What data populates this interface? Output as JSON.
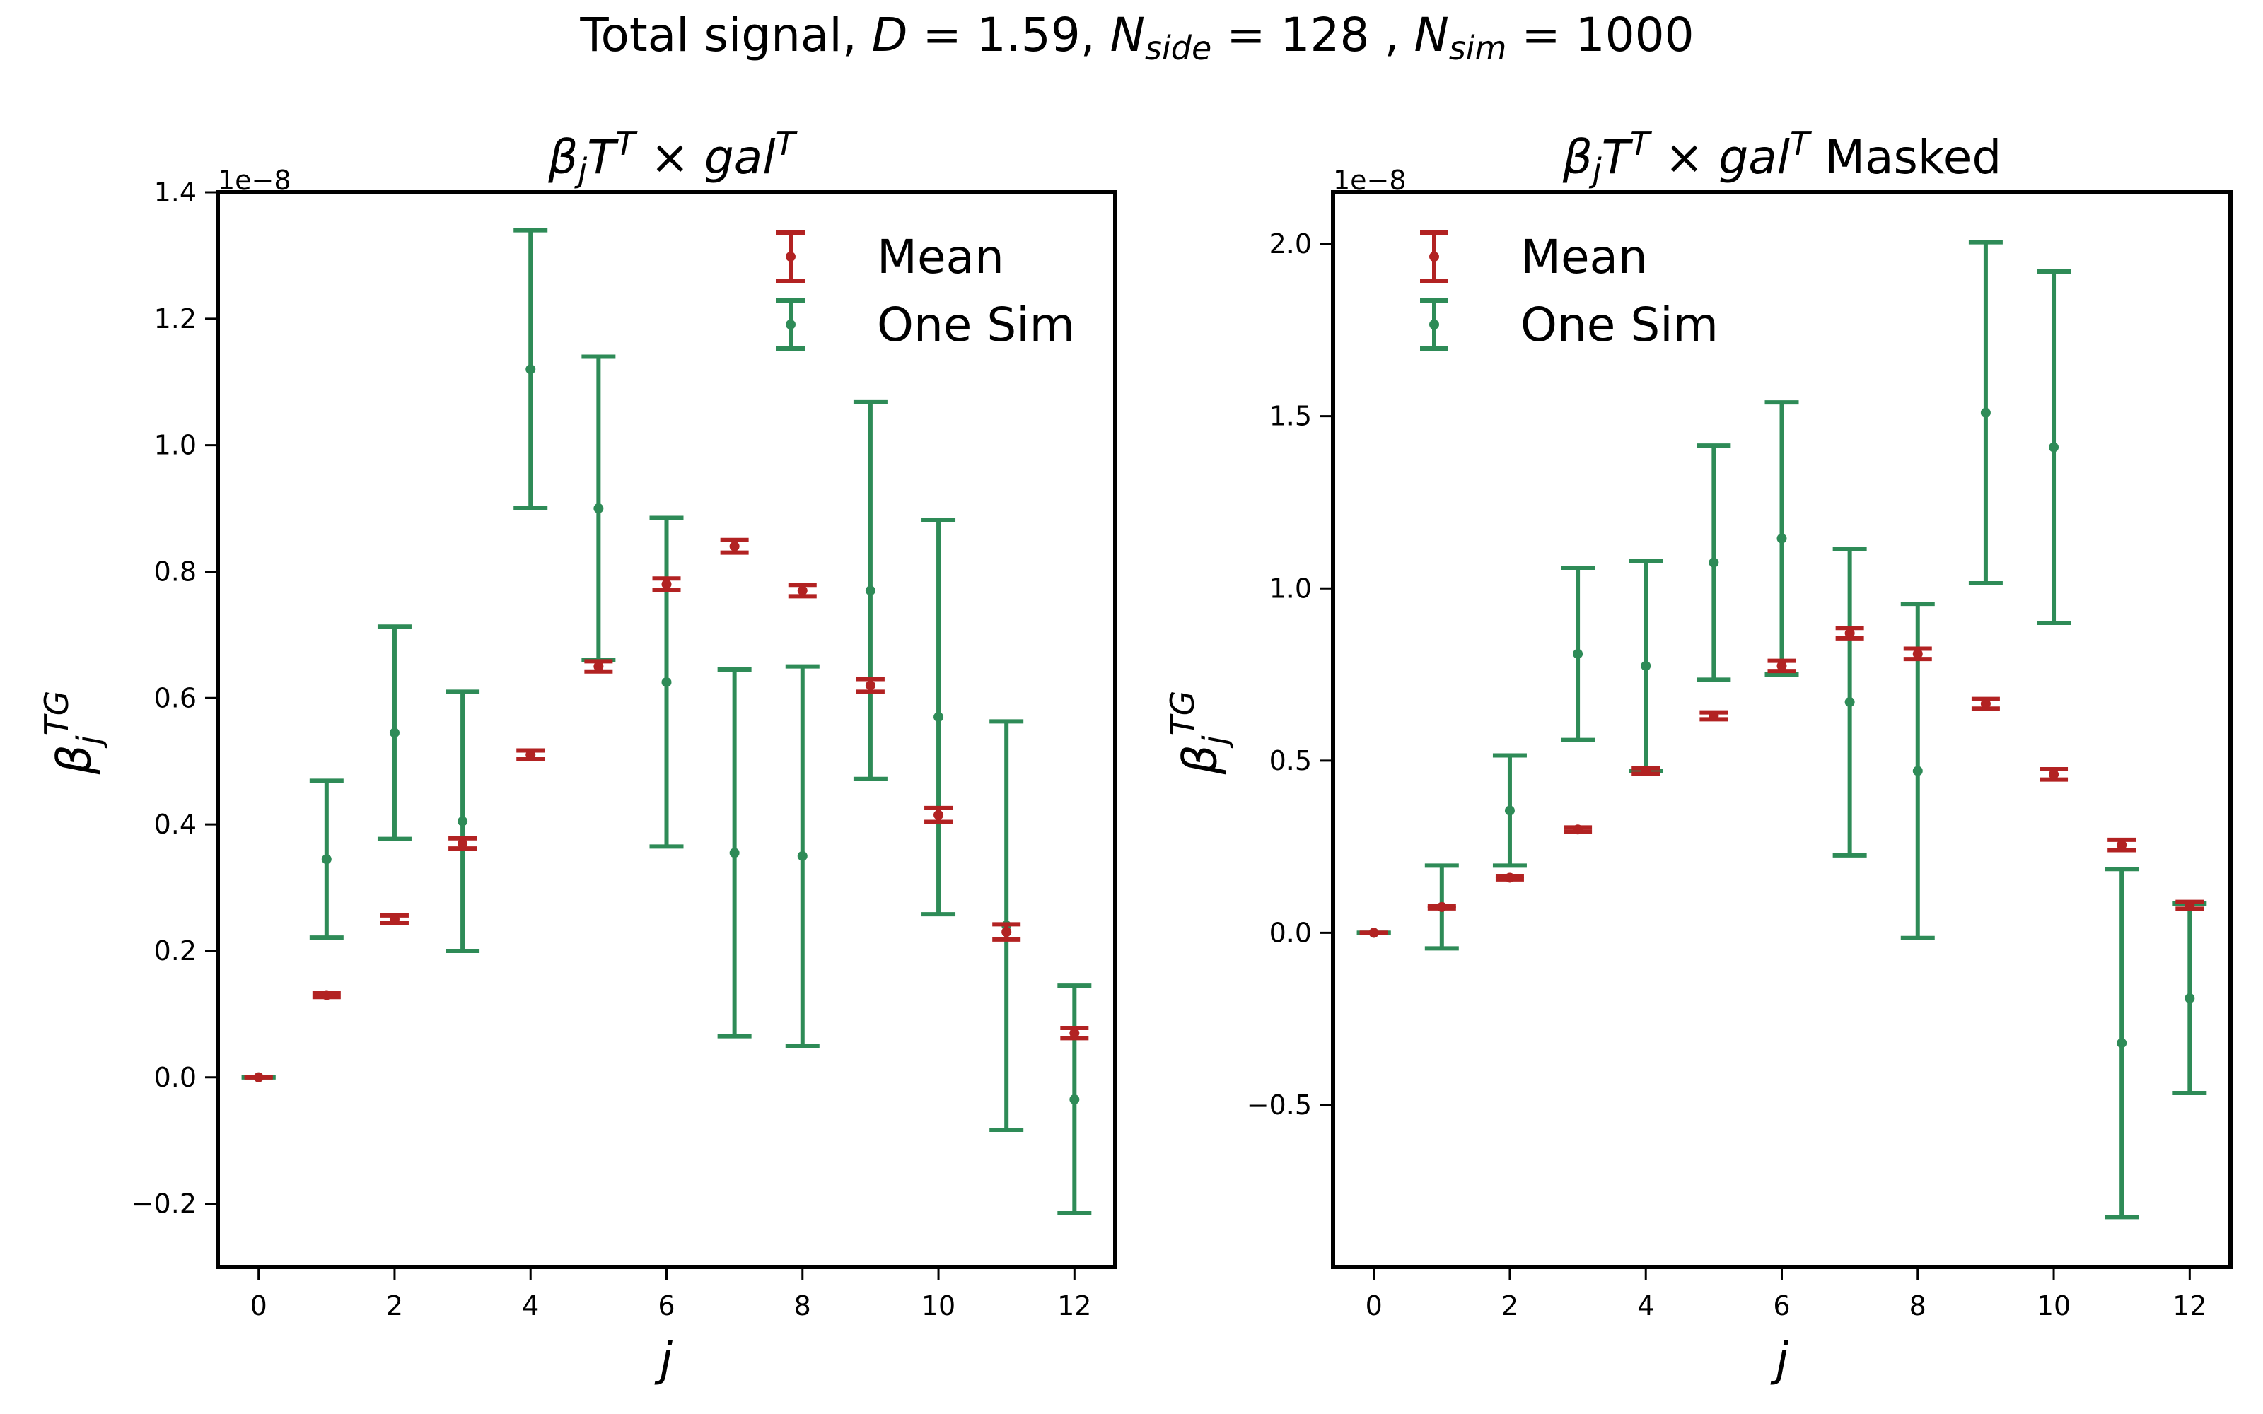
{
  "figure": {
    "suptitle": "Total signal, D = 1.59,  N_side = 128 ,  N_sim = 1000"
  },
  "colors": {
    "mean": "#b22222",
    "one_sim": "#2e8b57",
    "axes": "#000000"
  },
  "chart_data": [
    {
      "type": "scatter",
      "title": "β_j T^T × gal^T",
      "xlabel": "j",
      "ylabel": "β_j^TG",
      "y_offset_label": "1e−8",
      "xlim": [
        -0.6,
        12.6
      ],
      "ylim": [
        -0.3,
        1.4
      ],
      "x_ticks": [
        0,
        2,
        4,
        6,
        8,
        10,
        12
      ],
      "y_ticks": [
        -0.2,
        0.0,
        0.2,
        0.4,
        0.6,
        0.8,
        1.0,
        1.2,
        1.4
      ],
      "y_tick_labels": [
        "−0.2",
        "0.0",
        "0.2",
        "0.4",
        "0.6",
        "0.8",
        "1.0",
        "1.2",
        "1.4"
      ],
      "legend_position": "top-right",
      "series": [
        {
          "name": "Mean",
          "color_key": "mean",
          "x": [
            0,
            1,
            2,
            3,
            4,
            5,
            6,
            7,
            8,
            9,
            10,
            11,
            12
          ],
          "y": [
            0.0,
            0.13,
            0.25,
            0.37,
            0.51,
            0.65,
            0.78,
            0.84,
            0.77,
            0.62,
            0.415,
            0.23,
            0.07
          ],
          "yerr": [
            0.0,
            0.003,
            0.006,
            0.008,
            0.007,
            0.008,
            0.009,
            0.01,
            0.009,
            0.01,
            0.011,
            0.012,
            0.008
          ]
        },
        {
          "name": "One Sim",
          "color_key": "one_sim",
          "x": [
            0,
            1,
            2,
            3,
            4,
            5,
            6,
            7,
            8,
            9,
            10,
            11,
            12
          ],
          "y": [
            0.0,
            0.345,
            0.545,
            0.405,
            1.12,
            0.9,
            0.625,
            0.355,
            0.35,
            0.77,
            0.57,
            0.24,
            -0.035
          ],
          "yerr": [
            0.0,
            0.124,
            0.168,
            0.205,
            0.22,
            0.24,
            0.26,
            0.29,
            0.3,
            0.298,
            0.312,
            0.323,
            0.18
          ]
        }
      ]
    },
    {
      "type": "scatter",
      "title": "β_j T^T × gal^T Masked",
      "xlabel": "j",
      "ylabel": "β_j^TG",
      "y_offset_label": "1e−8",
      "xlim": [
        -0.6,
        12.6
      ],
      "ylim": [
        -0.97,
        2.15
      ],
      "x_ticks": [
        0,
        2,
        4,
        6,
        8,
        10,
        12
      ],
      "y_ticks": [
        -0.5,
        0.0,
        0.5,
        1.0,
        1.5,
        2.0
      ],
      "y_tick_labels": [
        "−0.5",
        "0.0",
        "0.5",
        "1.0",
        "1.5",
        "2.0"
      ],
      "legend_position": "top-left",
      "series": [
        {
          "name": "Mean",
          "color_key": "mean",
          "x": [
            0,
            1,
            2,
            3,
            4,
            5,
            6,
            7,
            8,
            9,
            10,
            11,
            12
          ],
          "y": [
            0.0,
            0.075,
            0.16,
            0.3,
            0.47,
            0.63,
            0.775,
            0.87,
            0.81,
            0.665,
            0.46,
            0.255,
            0.08
          ],
          "yerr": [
            0.0,
            0.004,
            0.005,
            0.006,
            0.008,
            0.01,
            0.015,
            0.015,
            0.015,
            0.014,
            0.015,
            0.015,
            0.01
          ]
        },
        {
          "name": "One Sim",
          "color_key": "one_sim",
          "x": [
            0,
            1,
            2,
            3,
            4,
            5,
            6,
            7,
            8,
            9,
            10,
            11,
            12
          ],
          "y": [
            0.0,
            0.075,
            0.355,
            0.81,
            0.775,
            1.075,
            1.145,
            0.67,
            0.47,
            1.51,
            1.41,
            -0.32,
            -0.19
          ],
          "yerr": [
            0.0,
            0.12,
            0.16,
            0.25,
            0.305,
            0.34,
            0.395,
            0.445,
            0.485,
            0.495,
            0.51,
            0.505,
            0.275
          ]
        }
      ]
    }
  ]
}
